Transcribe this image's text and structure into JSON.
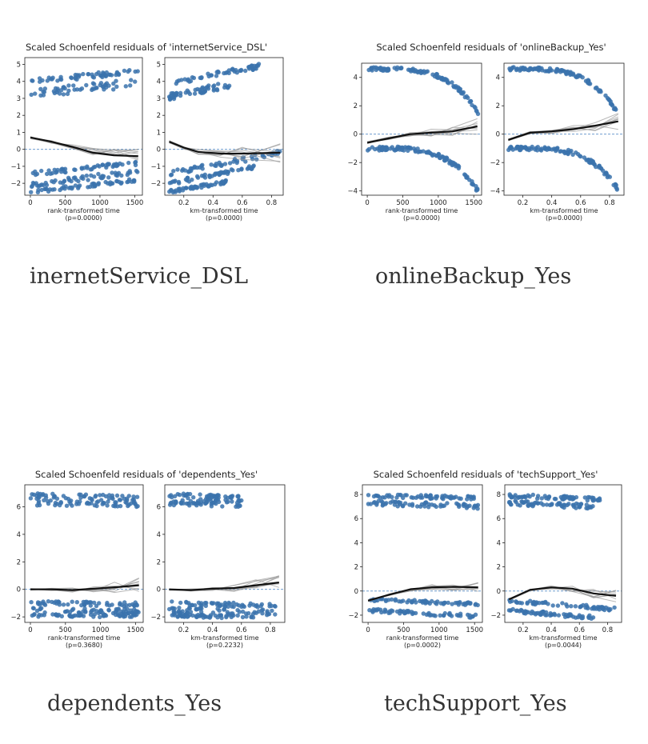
{
  "chart_data": [
    {
      "type": "scatter",
      "title": "Scaled Schoenfeld residuals of 'internetService_DSL'",
      "caption": "inernetService_DSL",
      "panels": [
        {
          "xlabel": "rank-transformed time",
          "pvalue": "(p=0.0000)",
          "xlim": [
            -80,
            1610
          ],
          "ylim": [
            -2.7,
            5.4
          ],
          "xticks": [
            0,
            500,
            1000,
            1500
          ],
          "xtick_labels": [
            "0",
            "500",
            "1000",
            "1500"
          ],
          "yticks": [
            -2,
            -1,
            0,
            1,
            2,
            3,
            4,
            5
          ],
          "ytick_labels": [
            "−2",
            "−1",
            "0",
            "1",
            "2",
            "3",
            "4",
            "5"
          ],
          "point_bands": [
            {
              "x": [
                0,
                1550
              ],
              "y": [
                4.0,
                4.6
              ],
              "spread": 0.15
            },
            {
              "x": [
                0,
                1550
              ],
              "y": [
                3.3,
                3.9
              ],
              "spread": 0.25
            },
            {
              "x": [
                0,
                1550
              ],
              "y": [
                -1.45,
                -0.8
              ],
              "spread": 0.12
            },
            {
              "x": [
                0,
                1550
              ],
              "y": [
                -2.1,
                -1.3
              ],
              "spread": 0.15
            },
            {
              "x": [
                0,
                1550
              ],
              "y": [
                -2.5,
                -1.8
              ],
              "spread": 0.1
            }
          ],
          "trend": {
            "x": [
              0,
              300,
              600,
              900,
              1200,
              1550
            ],
            "y": [
              0.7,
              0.45,
              0.15,
              -0.2,
              -0.35,
              -0.4
            ]
          }
        },
        {
          "xlabel": "km-transformed time",
          "pvalue": "(p=0.0000)",
          "xlim": [
            0.07,
            0.88
          ],
          "ylim": [
            -2.7,
            5.4
          ],
          "xticks": [
            0.2,
            0.4,
            0.6,
            0.8
          ],
          "xtick_labels": [
            "0.2",
            "0.4",
            "0.6",
            "0.8"
          ],
          "yticks": [
            -2,
            -1,
            0,
            1,
            2,
            3,
            4,
            5
          ],
          "ytick_labels": [
            "−2",
            "−1",
            "0",
            "1",
            "2",
            "3",
            "4",
            "5"
          ],
          "point_bands": [
            {
              "x": [
                0.1,
                0.72
              ],
              "y": [
                3.9,
                4.9
              ],
              "spread": 0.15
            },
            {
              "x": [
                0.1,
                0.55
              ],
              "y": [
                3.1,
                3.9
              ],
              "spread": 0.2
            },
            {
              "x": [
                0.1,
                0.86
              ],
              "y": [
                -1.4,
                -0.2
              ],
              "spread": 0.15
            },
            {
              "x": [
                0.1,
                0.7
              ],
              "y": [
                -2.0,
                -1.0
              ],
              "spread": 0.12
            },
            {
              "x": [
                0.1,
                0.5
              ],
              "y": [
                -2.5,
                -1.9
              ],
              "spread": 0.1
            }
          ],
          "trend": {
            "x": [
              0.1,
              0.2,
              0.3,
              0.45,
              0.6,
              0.86
            ],
            "y": [
              0.45,
              0.1,
              -0.15,
              -0.25,
              -0.25,
              -0.2
            ]
          }
        }
      ]
    },
    {
      "type": "scatter",
      "title": "Scaled Schoenfeld residuals of 'onlineBackup_Yes'",
      "caption": "onlineBackup_Yes",
      "panels": [
        {
          "xlabel": "rank-transformed time",
          "pvalue": "(p=0.0000)",
          "xlim": [
            -80,
            1610
          ],
          "ylim": [
            -4.3,
            5.0
          ],
          "xticks": [
            0,
            500,
            1000,
            1500
          ],
          "xtick_labels": [
            "0",
            "500",
            "1000",
            "1500"
          ],
          "yticks": [
            -4,
            -2,
            0,
            2,
            4
          ],
          "ytick_labels": [
            "−4",
            "−2",
            "0",
            "2",
            "4"
          ],
          "point_bands": [
            {
              "x": [
                0,
                1560
              ],
              "y": [
                4.6,
                1.5
              ],
              "spread": 0.12,
              "curve": "drop"
            },
            {
              "x": [
                0,
                1560
              ],
              "y": [
                -1.0,
                -4.0
              ],
              "spread": 0.15,
              "curve": "drop"
            }
          ],
          "trend": {
            "x": [
              0,
              300,
              600,
              900,
              1200,
              1550
            ],
            "y": [
              -0.6,
              -0.3,
              0.0,
              0.1,
              0.2,
              0.55
            ]
          }
        },
        {
          "xlabel": "km-transformed time",
          "pvalue": "(p=0.0000)",
          "xlim": [
            0.07,
            0.9
          ],
          "ylim": [
            -4.3,
            5.0
          ],
          "xticks": [
            0.2,
            0.4,
            0.6,
            0.8
          ],
          "xtick_labels": [
            "0.2",
            "0.4",
            "0.6",
            "0.8"
          ],
          "yticks": [
            -4,
            -2,
            0,
            2,
            4
          ],
          "ytick_labels": [
            "−4",
            "−2",
            "0",
            "2",
            "4"
          ],
          "point_bands": [
            {
              "x": [
                0.1,
                0.86
              ],
              "y": [
                4.6,
                1.4
              ],
              "spread": 0.12,
              "curve": "drop"
            },
            {
              "x": [
                0.1,
                0.86
              ],
              "y": [
                -1.0,
                -3.9
              ],
              "spread": 0.15,
              "curve": "drop"
            }
          ],
          "trend": {
            "x": [
              0.1,
              0.25,
              0.4,
              0.55,
              0.7,
              0.86
            ],
            "y": [
              -0.4,
              0.1,
              0.2,
              0.35,
              0.6,
              0.9
            ]
          }
        }
      ]
    },
    {
      "type": "scatter",
      "title": "Scaled Schoenfeld residuals of 'dependents_Yes'",
      "caption": "dependents_Yes",
      "panels": [
        {
          "xlabel": "rank-transformed time",
          "pvalue": "(p=0.3680)",
          "xlim": [
            -80,
            1610
          ],
          "ylim": [
            -2.4,
            7.6
          ],
          "xticks": [
            0,
            500,
            1000,
            1500
          ],
          "xtick_labels": [
            "0",
            "500",
            "1000",
            "1500"
          ],
          "yticks": [
            -2,
            0,
            2,
            4,
            6
          ],
          "ytick_labels": [
            "−2",
            "0",
            "2",
            "4",
            "6"
          ],
          "point_bands": [
            {
              "x": [
                0,
                1550
              ],
              "y": [
                6.8,
                6.6
              ],
              "spread": 0.2
            },
            {
              "x": [
                0,
                1550
              ],
              "y": [
                6.3,
                6.2
              ],
              "spread": 0.2
            },
            {
              "x": [
                0,
                1550
              ],
              "y": [
                -1.0,
                -1.1
              ],
              "spread": 0.15
            },
            {
              "x": [
                0,
                1550
              ],
              "y": [
                -1.5,
                -1.6
              ],
              "spread": 0.2
            },
            {
              "x": [
                0,
                1550
              ],
              "y": [
                -1.9,
                -1.9
              ],
              "spread": 0.12
            }
          ],
          "trend": {
            "x": [
              0,
              300,
              600,
              900,
              1200,
              1550
            ],
            "y": [
              0.0,
              0.0,
              -0.05,
              0.05,
              0.15,
              0.3
            ]
          }
        },
        {
          "xlabel": "km-transformed time",
          "pvalue": "(p=0.2232)",
          "xlim": [
            0.07,
            0.9
          ],
          "ylim": [
            -2.4,
            7.6
          ],
          "xticks": [
            0.2,
            0.4,
            0.6,
            0.8
          ],
          "xtick_labels": [
            "0.2",
            "0.4",
            "0.6",
            "0.8"
          ],
          "yticks": [
            -2,
            0,
            2,
            4,
            6
          ],
          "ytick_labels": [
            "−2",
            "0",
            "2",
            "4",
            "6"
          ],
          "point_bands": [
            {
              "x": [
                0.1,
                0.6
              ],
              "y": [
                6.8,
                6.6
              ],
              "spread": 0.2
            },
            {
              "x": [
                0.1,
                0.6
              ],
              "y": [
                6.3,
                6.2
              ],
              "spread": 0.2
            },
            {
              "x": [
                0.1,
                0.85
              ],
              "y": [
                -1.0,
                -1.2
              ],
              "spread": 0.15
            },
            {
              "x": [
                0.1,
                0.85
              ],
              "y": [
                -1.5,
                -1.7
              ],
              "spread": 0.2
            },
            {
              "x": [
                0.1,
                0.7
              ],
              "y": [
                -1.9,
                -2.0
              ],
              "spread": 0.12
            }
          ],
          "trend": {
            "x": [
              0.1,
              0.25,
              0.4,
              0.55,
              0.7,
              0.86
            ],
            "y": [
              0.0,
              -0.05,
              0.05,
              0.1,
              0.3,
              0.5
            ]
          }
        }
      ]
    },
    {
      "type": "scatter",
      "title": "Scaled Schoenfeld residuals of 'techSupport_Yes'",
      "caption": "techSupport_Yes",
      "panels": [
        {
          "xlabel": "rank-transformed time",
          "pvalue": "(p=0.0002)",
          "xlim": [
            -80,
            1610
          ],
          "ylim": [
            -2.6,
            8.8
          ],
          "xticks": [
            0,
            500,
            1000,
            1500
          ],
          "xtick_labels": [
            "0",
            "500",
            "1000",
            "1500"
          ],
          "yticks": [
            -2,
            0,
            2,
            4,
            6,
            8
          ],
          "ytick_labels": [
            "−2",
            "0",
            "2",
            "4",
            "6",
            "8"
          ],
          "point_bands": [
            {
              "x": [
                0,
                1550
              ],
              "y": [
                7.9,
                7.7
              ],
              "spread": 0.15
            },
            {
              "x": [
                0,
                1550
              ],
              "y": [
                7.3,
                7.0
              ],
              "spread": 0.2
            },
            {
              "x": [
                0,
                1550
              ],
              "y": [
                -0.7,
                -1.1
              ],
              "spread": 0.12
            },
            {
              "x": [
                0,
                1550
              ],
              "y": [
                -1.6,
                -2.1
              ],
              "spread": 0.15
            }
          ],
          "trend": {
            "x": [
              0,
              300,
              600,
              900,
              1200,
              1550
            ],
            "y": [
              -0.8,
              -0.3,
              0.15,
              0.3,
              0.35,
              0.3
            ]
          }
        },
        {
          "xlabel": "km-transformed time",
          "pvalue": "(p=0.0044)",
          "xlim": [
            0.07,
            0.9
          ],
          "ylim": [
            -2.6,
            8.8
          ],
          "xticks": [
            0.2,
            0.4,
            0.6,
            0.8
          ],
          "xtick_labels": [
            "0.2",
            "0.4",
            "0.6",
            "0.8"
          ],
          "yticks": [
            -2,
            0,
            2,
            4,
            6,
            8
          ],
          "ytick_labels": [
            "−2",
            "0",
            "2",
            "4",
            "6",
            "8"
          ],
          "point_bands": [
            {
              "x": [
                0.1,
                0.75
              ],
              "y": [
                7.9,
                7.6
              ],
              "spread": 0.15
            },
            {
              "x": [
                0.1,
                0.7
              ],
              "y": [
                7.3,
                7.0
              ],
              "spread": 0.2
            },
            {
              "x": [
                0.1,
                0.85
              ],
              "y": [
                -0.8,
                -1.5
              ],
              "spread": 0.15
            },
            {
              "x": [
                0.1,
                0.7
              ],
              "y": [
                -1.6,
                -2.2
              ],
              "spread": 0.15
            }
          ],
          "trend": {
            "x": [
              0.1,
              0.25,
              0.4,
              0.55,
              0.7,
              0.86
            ],
            "y": [
              -0.7,
              0.1,
              0.3,
              0.2,
              -0.2,
              -0.4
            ]
          }
        }
      ]
    }
  ],
  "colors": {
    "points": "#3b73ad",
    "trend": "#111111",
    "bootstrap": "#9a9a9a",
    "zero_line": "#5b8fc7",
    "caption": "#333333"
  }
}
